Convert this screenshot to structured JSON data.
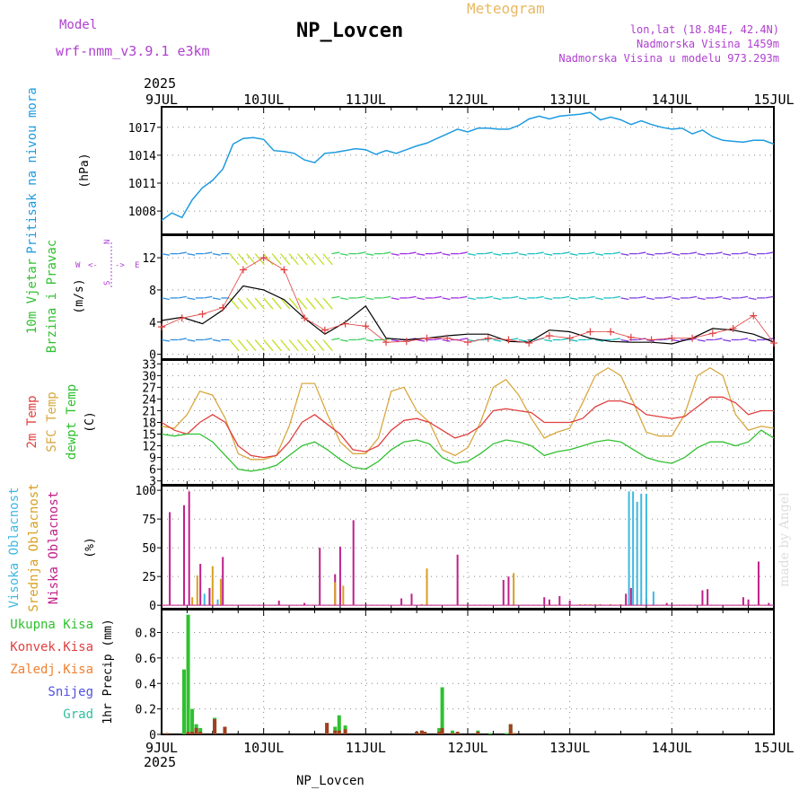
{
  "header": {
    "model_label": "Model",
    "model_name": "wrf-nmm_v3.9.1 e3km",
    "station": "NP_Lovcen",
    "chart_type": "Meteogram",
    "lonlat": "lon,lat (18.84E, 42.4N)",
    "elevation": "Nadmorska Visina 1459m",
    "elevation_model": "Nadmorska Visina u modelu 973.293m"
  },
  "footer": {
    "station": "NP_Lovcen",
    "credit": "made by Angel"
  },
  "colors": {
    "pressure": "#1e9be0",
    "temp2m": "#e04040",
    "sfc": "#d8a840",
    "dewpt": "#30c030",
    "high_cloud": "#40b8e0",
    "mid_cloud": "#d8a020",
    "low_cloud": "#c0208a",
    "total_precip": "#30c030",
    "conv_precip": "#e04040",
    "frozen": "#f08030",
    "snow": "#5050e0",
    "graupel": "#30c0a0",
    "label_wind": "#30c030"
  },
  "chart_data": [
    {
      "type": "line",
      "title": "Pritisak na nivou mora",
      "ylabel": "(hPa)",
      "year": "2025",
      "x_ticks": [
        "9JUL",
        "10JUL",
        "11JUL",
        "12JUL",
        "13JUL",
        "14JUL",
        "15JUL"
      ],
      "ylim": [
        1005.5,
        1019.2
      ],
      "y_ticks": [
        1008,
        1011,
        1014,
        1017
      ],
      "x": [
        0,
        0.1,
        0.2,
        0.3,
        0.4,
        0.5,
        0.6,
        0.7,
        0.8,
        0.9,
        1.0,
        1.1,
        1.2,
        1.3,
        1.4,
        1.5,
        1.6,
        1.7,
        1.8,
        1.9,
        2.0,
        2.1,
        2.2,
        2.3,
        2.4,
        2.5,
        2.6,
        2.7,
        2.8,
        2.9,
        3.0,
        3.1,
        3.2,
        3.3,
        3.4,
        3.5,
        3.6,
        3.7,
        3.8,
        3.9,
        4.0,
        4.1,
        4.2,
        4.3,
        4.4,
        4.5,
        4.6,
        4.7,
        4.8,
        4.9,
        5.0,
        5.1,
        5.2,
        5.3,
        5.4,
        5.5,
        5.6,
        5.7,
        5.8,
        5.9,
        6.0
      ],
      "series": [
        {
          "name": "Pritisak",
          "values": [
            1007,
            1007.8,
            1007.3,
            1009.2,
            1010.5,
            1011.3,
            1012.5,
            1015.2,
            1015.8,
            1015.9,
            1015.7,
            1014.5,
            1014.4,
            1014.2,
            1013.5,
            1013.2,
            1014.2,
            1014.3,
            1014.5,
            1014.7,
            1014.6,
            1014.1,
            1014.5,
            1014.2,
            1014.6,
            1015.0,
            1015.3,
            1015.8,
            1016.3,
            1016.8,
            1016.5,
            1016.9,
            1016.9,
            1016.8,
            1016.8,
            1017.2,
            1017.9,
            1018.2,
            1017.9,
            1018.2,
            1018.3,
            1018.4,
            1018.6,
            1017.8,
            1018.1,
            1017.8,
            1017.3,
            1017.7,
            1017.3,
            1017.0,
            1016.8,
            1016.9,
            1016.3,
            1016.7,
            1016.0,
            1015.6,
            1015.5,
            1015.4,
            1015.6,
            1015.6,
            1015.2
          ]
        }
      ]
    },
    {
      "type": "line",
      "title": "10m Vjetar Brzina i Pravac",
      "ylabel": "(m/s)",
      "compass": {
        "north": "N",
        "south": "S",
        "west": "W",
        "east": "E",
        "arrow_left": "<-",
        "arrow_right": "->"
      },
      "ylim": [
        -0.6,
        14.8
      ],
      "y_ticks": [
        0,
        4,
        8,
        12
      ],
      "x": [
        0,
        0.2,
        0.4,
        0.6,
        0.8,
        1.0,
        1.2,
        1.4,
        1.6,
        1.8,
        2.0,
        2.2,
        2.4,
        2.6,
        2.8,
        3.0,
        3.2,
        3.4,
        3.6,
        3.8,
        4.0,
        4.2,
        4.4,
        4.6,
        4.8,
        5.0,
        5.2,
        5.4,
        5.6,
        5.8,
        6.0
      ],
      "series": [
        {
          "name": "Brzina (black)",
          "values": [
            4.2,
            4.6,
            3.8,
            5.5,
            8.5,
            8.0,
            6.8,
            4.5,
            2.5,
            4.0,
            6.0,
            2.0,
            1.8,
            2.0,
            2.3,
            2.5,
            2.5,
            1.6,
            1.5,
            3.0,
            2.8,
            2.0,
            1.6,
            1.5,
            1.5,
            1.3,
            2.0,
            3.2,
            3.0,
            2.5,
            1.5
          ]
        },
        {
          "name": "Udari (red +)",
          "values": [
            3.4,
            4.5,
            5.0,
            5.8,
            10.5,
            12.0,
            10.5,
            4.5,
            3.0,
            3.8,
            3.5,
            1.5,
            1.6,
            2.0,
            2.0,
            1.5,
            2.0,
            1.8,
            1.4,
            2.3,
            2.0,
            2.8,
            2.8,
            2.1,
            1.8,
            2.0,
            2.0,
            2.6,
            3.2,
            4.8,
            1.4
          ]
        }
      ]
    },
    {
      "type": "line",
      "title": "2m Temp / SFC Temp / dewpt Temp",
      "ylabel": "(C)",
      "ylim": [
        2,
        34
      ],
      "y_ticks": [
        3,
        6,
        9,
        12,
        15,
        18,
        21,
        24,
        27,
        30,
        33
      ],
      "x": [
        0,
        0.125,
        0.25,
        0.375,
        0.5,
        0.625,
        0.75,
        0.875,
        1.0,
        1.125,
        1.25,
        1.375,
        1.5,
        1.625,
        1.75,
        1.875,
        2.0,
        2.125,
        2.25,
        2.375,
        2.5,
        2.625,
        2.75,
        2.875,
        3.0,
        3.125,
        3.25,
        3.375,
        3.5,
        3.625,
        3.75,
        3.875,
        4.0,
        4.125,
        4.25,
        4.375,
        4.5,
        4.625,
        4.75,
        4.875,
        5.0,
        5.125,
        5.25,
        5.375,
        5.5,
        5.625,
        5.75,
        5.875,
        6.0
      ],
      "series": [
        {
          "name": "2m Temp",
          "values": [
            18,
            16,
            15,
            18,
            20,
            18,
            12,
            9.5,
            9,
            9.5,
            13,
            18,
            20,
            17.5,
            15,
            11,
            10.5,
            12,
            16,
            18.5,
            19,
            18,
            16,
            14,
            15,
            17,
            21,
            21.5,
            21,
            20.5,
            18,
            18,
            18,
            19,
            22,
            23.5,
            23.5,
            22.5,
            20,
            19.5,
            19,
            19.5,
            22,
            24.5,
            24.5,
            23,
            20,
            21,
            21
          ]
        },
        {
          "name": "SFC Temp",
          "values": [
            17,
            16.5,
            20,
            26,
            25,
            19,
            10,
            8.5,
            8.5,
            9.5,
            17,
            28,
            28,
            20,
            13,
            10,
            10,
            14,
            26,
            27,
            21,
            18,
            11,
            9.5,
            11.5,
            18,
            27,
            29,
            25,
            19,
            14,
            15.5,
            16.5,
            23,
            30,
            32,
            30,
            23,
            15.5,
            14.5,
            14.5,
            20,
            30,
            32,
            30,
            20,
            16,
            17,
            16.5
          ]
        },
        {
          "name": "dewpt Temp",
          "values": [
            15,
            14.5,
            15,
            15,
            13,
            9.5,
            6,
            5.5,
            6,
            7,
            9.5,
            12,
            13,
            11,
            8.5,
            6.5,
            6,
            8,
            11,
            13,
            13.5,
            12.5,
            9,
            7.5,
            8,
            10,
            12.5,
            13.5,
            13,
            12,
            9.5,
            10.5,
            11,
            12,
            13,
            13.5,
            13,
            11,
            9,
            8,
            7.5,
            9,
            11.5,
            13,
            13,
            12,
            13,
            16,
            14
          ]
        }
      ]
    },
    {
      "type": "bar",
      "title": "Visoka / Srednja / Niska Oblacnost",
      "ylabel": "(%)",
      "ylim": [
        -3,
        104
      ],
      "y_ticks": [
        0,
        25,
        50,
        75,
        100
      ],
      "series": [
        {
          "name": "Niska Oblacnost",
          "x": [
            0.08,
            0.22,
            0.27,
            0.38,
            0.47,
            0.6,
            1.15,
            1.4,
            1.55,
            1.7,
            1.75,
            1.88,
            2.35,
            2.45,
            2.9,
            3.35,
            3.4,
            3.75,
            3.8,
            3.9,
            4.0,
            4.55,
            4.6,
            4.75,
            4.95,
            5.3,
            5.35,
            5.7,
            5.75,
            5.85,
            5.95
          ],
          "values": [
            81,
            87,
            99,
            36,
            15,
            42,
            4,
            2,
            50,
            27,
            51,
            74,
            6,
            10,
            44,
            22,
            25,
            7,
            5,
            8,
            4,
            10,
            15,
            6,
            2,
            13,
            14,
            7,
            5,
            38,
            2
          ]
        },
        {
          "name": "Srednja Oblacnost",
          "x": [
            0.3,
            0.35,
            0.5,
            0.58,
            1.7,
            1.78,
            2.55,
            2.6,
            3.45,
            4.1,
            4.15,
            4.2,
            4.25,
            4.3,
            4.4,
            4.5
          ],
          "values": [
            7,
            26,
            34,
            23,
            20,
            17,
            1,
            32,
            28,
            1,
            1,
            1,
            1,
            1,
            1,
            1
          ]
        },
        {
          "name": "Visoka Oblacnost",
          "x": [
            0.42,
            0.55,
            4.58,
            4.62,
            4.66,
            4.7,
            4.75,
            4.82
          ],
          "values": [
            10,
            5,
            99,
            99,
            90,
            97,
            97,
            12
          ]
        }
      ]
    },
    {
      "type": "bar",
      "title": "Precip",
      "ylabel": "1hr Precip (mm)",
      "legend": [
        "Ukupna Kisa",
        "Konvek.Kisa",
        "Zaledj.Kisa",
        "Snijeg",
        "Grad"
      ],
      "ylim": [
        0,
        0.98
      ],
      "y_ticks": [
        0,
        0.2,
        0.4,
        0.6,
        0.8
      ],
      "x": [
        0.05,
        0.22,
        0.26,
        0.3,
        0.34,
        0.38,
        0.52,
        0.62,
        1.62,
        1.7,
        1.74,
        1.8,
        2.5,
        2.55,
        2.58,
        2.72,
        2.75,
        2.85,
        2.9,
        3.1,
        3.22,
        3.38,
        3.42,
        3.46
      ],
      "series": [
        {
          "name": "Ukupna Kisa",
          "values": [
            0.01,
            0.51,
            0.94,
            0.2,
            0.08,
            0.05,
            0.13,
            0.06,
            0.09,
            0.06,
            0.15,
            0.07,
            0.02,
            0.03,
            0.02,
            0.05,
            0.37,
            0.03,
            0.02,
            0.03,
            0.01,
            0.01,
            0.08,
            0.01
          ]
        },
        {
          "name": "Konvek.Kisa",
          "values": [
            0.01,
            0.0,
            0.02,
            0.02,
            0.05,
            0.02,
            0.12,
            0.06,
            0.09,
            0.03,
            0.03,
            0.04,
            0.02,
            0.03,
            0.02,
            0.02,
            0.05,
            0.01,
            0.02,
            0.02,
            0.0,
            0.0,
            0.08,
            0.01
          ]
        }
      ]
    }
  ]
}
